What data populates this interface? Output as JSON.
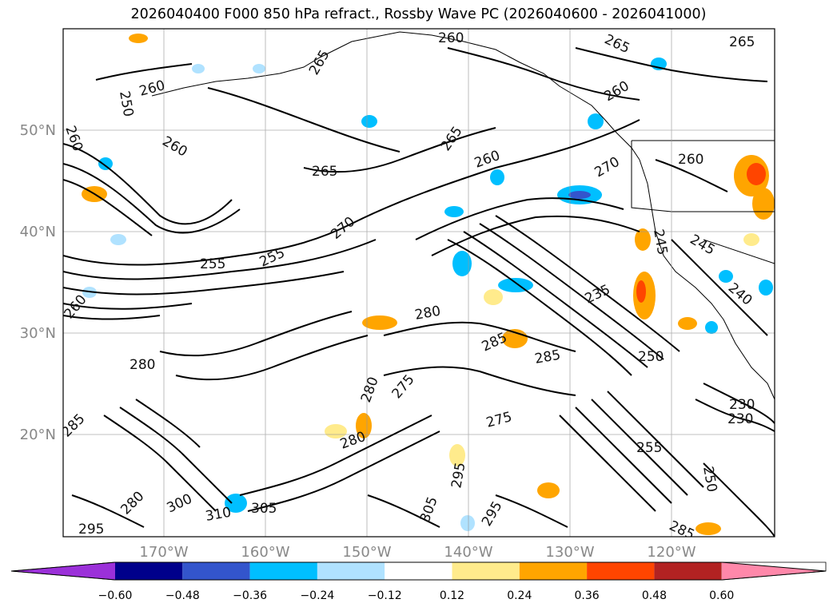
{
  "title": "2026040400 F000 850 hPa refract., Rossby Wave PC (2026040600 - 2026041000)",
  "axes": {
    "lat_labels": [
      "50°N",
      "40°N",
      "30°N",
      "20°N"
    ],
    "lon_labels": [
      "170°W",
      "160°W",
      "150°W",
      "140°W",
      "130°W",
      "120°W"
    ]
  },
  "contour_labels": [
    "260",
    "265",
    "265",
    "260",
    "260",
    "265",
    "260",
    "270",
    "270",
    "265",
    "260",
    "260",
    "265",
    "260",
    "255",
    "255",
    "260",
    "250",
    "280",
    "280",
    "285",
    "285",
    "250",
    "235",
    "245",
    "245",
    "240",
    "230",
    "230",
    "255",
    "275",
    "275",
    "280",
    "280",
    "285",
    "295",
    "300",
    "305",
    "305",
    "310",
    "295",
    "280",
    "250",
    "285",
    "295"
  ],
  "colorbar": {
    "ticks": [
      "−0.60",
      "−0.48",
      "−0.36",
      "−0.24",
      "−0.12",
      "0.12",
      "0.24",
      "0.36",
      "0.48",
      "0.60"
    ],
    "colors": [
      "#9b30d9",
      "#00008b",
      "#3355cc",
      "#00bfff",
      "#b0e2ff",
      "#ffffff",
      "#ffeb8c",
      "#ffa500",
      "#ff4500",
      "#b22222",
      "#ff88aa"
    ]
  }
}
